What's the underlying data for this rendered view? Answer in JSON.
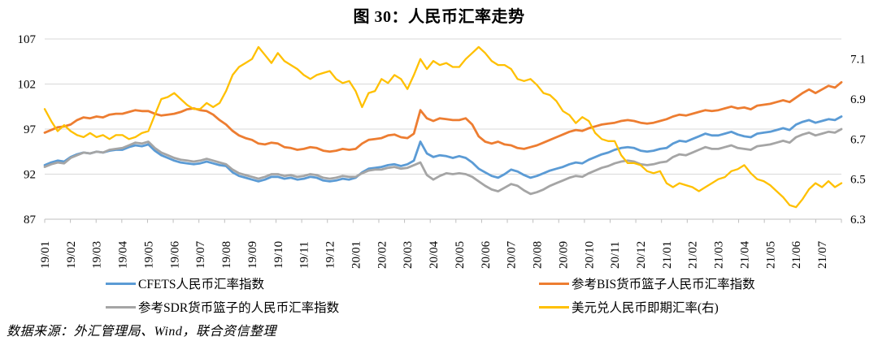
{
  "title": "图 30：人民币汇率走势",
  "source_note": "数据来源：外汇管理局、Wind，联合资信整理",
  "colors": {
    "cfets_blue": "#5B9BD5",
    "bis_orange": "#ED7D31",
    "sdr_gray": "#A5A5A5",
    "usdcny_yellow": "#FFC000",
    "gridline": "#D9D9D9",
    "axis_line": "#BFBFBF",
    "text": "#000000"
  },
  "chart_data": {
    "type": "line",
    "title": "图 30：人民币汇率走势",
    "grid": "horizontal",
    "legend_position": "bottom",
    "x_labels": [
      "19/01",
      "19/02",
      "19/03",
      "19/04",
      "19/05",
      "19/06",
      "19/07",
      "19/08",
      "19/09",
      "19/10",
      "19/11",
      "19/12",
      "20/01",
      "20/02",
      "20/03",
      "20/04",
      "20/05",
      "20/06",
      "20/07",
      "20/08",
      "20/09",
      "20/10",
      "20/11",
      "20/12",
      "21/01",
      "21/02",
      "21/03",
      "21/04",
      "21/05",
      "21/06",
      "21/07"
    ],
    "points_per_month": 4,
    "left_axis": {
      "min": 87,
      "max": 107,
      "ticks": [
        107,
        102,
        97,
        92,
        87
      ]
    },
    "right_axis": {
      "min": 6.3,
      "max": 7.2,
      "ticks": [
        7.1,
        6.9,
        6.7,
        6.5,
        6.3
      ]
    },
    "series": [
      {
        "name": "CFETS人民币汇率指数",
        "color": "#5B9BD5",
        "axis": "left",
        "width": 2.8,
        "values": [
          93.0,
          93.3,
          93.5,
          93.4,
          93.9,
          94.2,
          94.4,
          94.3,
          94.5,
          94.4,
          94.6,
          94.7,
          94.7,
          95.0,
          95.2,
          95.1,
          95.3,
          94.6,
          94.1,
          93.8,
          93.5,
          93.3,
          93.2,
          93.1,
          93.2,
          93.4,
          93.2,
          93.0,
          92.9,
          92.2,
          91.8,
          91.6,
          91.4,
          91.2,
          91.4,
          91.7,
          91.7,
          91.5,
          91.6,
          91.4,
          91.5,
          91.7,
          91.6,
          91.3,
          91.2,
          91.3,
          91.5,
          91.4,
          91.6,
          92.2,
          92.6,
          92.7,
          92.8,
          93.0,
          93.1,
          92.9,
          93.1,
          93.5,
          95.6,
          94.3,
          93.9,
          94.1,
          94.0,
          93.8,
          94.0,
          93.8,
          93.3,
          92.6,
          92.2,
          91.8,
          91.6,
          92.0,
          92.5,
          92.3,
          91.9,
          91.6,
          91.8,
          92.1,
          92.4,
          92.6,
          92.8,
          93.1,
          93.3,
          93.2,
          93.6,
          93.9,
          94.2,
          94.4,
          94.7,
          94.9,
          95.0,
          94.9,
          94.6,
          94.5,
          94.6,
          94.8,
          94.9,
          95.4,
          95.7,
          95.6,
          95.9,
          96.2,
          96.5,
          96.3,
          96.3,
          96.5,
          96.7,
          96.4,
          96.2,
          96.1,
          96.5,
          96.6,
          96.7,
          96.9,
          97.1,
          96.9,
          97.5,
          97.8,
          98.0,
          97.7,
          97.9,
          98.1,
          98.0,
          98.4
        ]
      },
      {
        "name": "参考BIS货币篮子人民币汇率指数",
        "color": "#ED7D31",
        "axis": "left",
        "width": 2.8,
        "values": [
          96.6,
          96.9,
          97.2,
          97.3,
          97.5,
          98.0,
          98.3,
          98.2,
          98.4,
          98.3,
          98.6,
          98.7,
          98.7,
          98.9,
          99.1,
          99.0,
          99.0,
          98.7,
          98.5,
          98.6,
          98.7,
          98.9,
          99.2,
          99.3,
          99.1,
          99.0,
          98.6,
          98.0,
          97.5,
          96.8,
          96.3,
          96.0,
          95.8,
          95.4,
          95.3,
          95.5,
          95.4,
          95.0,
          94.9,
          94.7,
          94.8,
          95.0,
          94.9,
          94.6,
          94.5,
          94.6,
          94.8,
          94.7,
          94.8,
          95.4,
          95.8,
          95.9,
          96.0,
          96.3,
          96.4,
          96.1,
          96.0,
          96.5,
          99.1,
          98.2,
          97.9,
          98.2,
          98.1,
          98.0,
          98.0,
          98.2,
          97.5,
          96.2,
          95.6,
          95.4,
          95.6,
          95.3,
          95.2,
          94.9,
          94.8,
          95.0,
          95.2,
          95.5,
          95.8,
          96.1,
          96.4,
          96.7,
          96.9,
          96.8,
          97.1,
          97.3,
          97.5,
          97.6,
          97.7,
          97.9,
          98.0,
          97.9,
          97.7,
          97.6,
          97.7,
          97.9,
          98.1,
          98.4,
          98.6,
          98.5,
          98.7,
          98.9,
          99.1,
          99.0,
          99.1,
          99.3,
          99.5,
          99.3,
          99.4,
          99.2,
          99.6,
          99.7,
          99.8,
          100.0,
          100.2,
          100.0,
          100.5,
          101.0,
          101.4,
          101.0,
          101.4,
          101.8,
          101.6,
          102.2
        ]
      },
      {
        "name": "参考SDR货币篮子的人民币汇率指数",
        "color": "#A5A5A5",
        "axis": "left",
        "width": 2.8,
        "values": [
          92.8,
          93.1,
          93.3,
          93.2,
          93.8,
          94.1,
          94.4,
          94.3,
          94.5,
          94.4,
          94.7,
          94.8,
          94.9,
          95.2,
          95.5,
          95.4,
          95.6,
          94.9,
          94.4,
          94.1,
          93.8,
          93.6,
          93.5,
          93.4,
          93.5,
          93.7,
          93.5,
          93.3,
          93.1,
          92.5,
          92.1,
          91.9,
          91.7,
          91.5,
          91.7,
          92.0,
          92.0,
          91.8,
          91.9,
          91.7,
          91.8,
          92.0,
          91.9,
          91.6,
          91.5,
          91.6,
          91.8,
          91.7,
          91.7,
          92.1,
          92.4,
          92.5,
          92.5,
          92.7,
          92.8,
          92.6,
          92.7,
          93.0,
          93.3,
          91.9,
          91.4,
          91.8,
          92.1,
          92.0,
          92.1,
          92.0,
          91.7,
          91.2,
          90.7,
          90.3,
          90.1,
          90.5,
          90.9,
          90.7,
          90.2,
          89.8,
          90.0,
          90.3,
          90.7,
          91.0,
          91.3,
          91.6,
          91.8,
          91.7,
          92.1,
          92.4,
          92.7,
          92.9,
          93.2,
          93.4,
          93.5,
          93.4,
          93.1,
          93.0,
          93.1,
          93.3,
          93.4,
          93.9,
          94.2,
          94.1,
          94.4,
          94.7,
          95.0,
          94.8,
          94.8,
          95.0,
          95.2,
          94.9,
          94.8,
          94.7,
          95.1,
          95.2,
          95.3,
          95.5,
          95.7,
          95.5,
          96.1,
          96.4,
          96.6,
          96.3,
          96.5,
          96.7,
          96.6,
          97.0
        ]
      },
      {
        "name": "美元兑人民币即期汇率(右)",
        "color": "#FFC000",
        "axis": "right",
        "width": 2.3,
        "values": [
          6.85,
          6.79,
          6.74,
          6.77,
          6.74,
          6.72,
          6.71,
          6.73,
          6.71,
          6.72,
          6.7,
          6.72,
          6.72,
          6.7,
          6.71,
          6.73,
          6.74,
          6.82,
          6.9,
          6.91,
          6.93,
          6.9,
          6.87,
          6.85,
          6.85,
          6.88,
          6.86,
          6.88,
          6.94,
          7.02,
          7.06,
          7.08,
          7.1,
          7.16,
          7.12,
          7.08,
          7.13,
          7.09,
          7.07,
          7.05,
          7.02,
          7.0,
          7.02,
          7.03,
          7.04,
          7.0,
          6.98,
          6.99,
          6.94,
          6.86,
          6.93,
          6.94,
          7.0,
          6.98,
          7.02,
          7.0,
          6.95,
          7.02,
          7.1,
          7.05,
          7.09,
          7.07,
          7.08,
          7.06,
          7.06,
          7.1,
          7.13,
          7.16,
          7.13,
          7.09,
          7.07,
          7.07,
          7.05,
          7.0,
          6.99,
          7.0,
          6.97,
          6.93,
          6.92,
          6.89,
          6.84,
          6.82,
          6.78,
          6.81,
          6.79,
          6.73,
          6.7,
          6.69,
          6.69,
          6.62,
          6.58,
          6.58,
          6.57,
          6.54,
          6.53,
          6.54,
          6.48,
          6.46,
          6.48,
          6.47,
          6.46,
          6.44,
          6.46,
          6.48,
          6.5,
          6.51,
          6.54,
          6.55,
          6.57,
          6.53,
          6.5,
          6.49,
          6.47,
          6.44,
          6.41,
          6.37,
          6.36,
          6.4,
          6.45,
          6.48,
          6.46,
          6.49,
          6.46,
          6.48
        ]
      }
    ]
  }
}
